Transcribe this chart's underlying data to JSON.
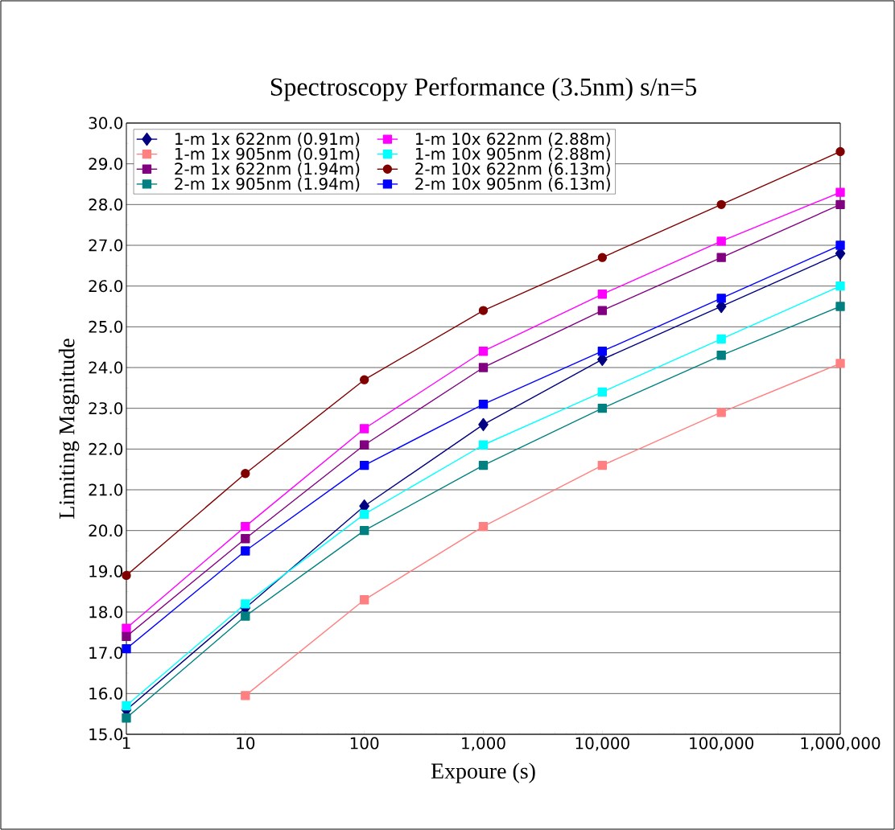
{
  "chart_data": {
    "type": "line",
    "title": "Spectroscopy Performance (3.5nm) s/n=5",
    "xlabel": "Expoure (s)",
    "ylabel": "Limiting Magnitude",
    "x": [
      1,
      10,
      100,
      1000,
      10000,
      100000,
      1000000
    ],
    "log": "x",
    "xlim": [
      1,
      1000000
    ],
    "ylim": [
      15,
      30
    ],
    "xticks": [
      1,
      10,
      100,
      {
        "value": 1000,
        "label": "1,000"
      },
      {
        "value": 10000,
        "label": "10,000"
      },
      {
        "value": 100000,
        "label": "100,000"
      },
      {
        "value": 1000000,
        "label": "1,000,000"
      }
    ],
    "yticks": [
      {
        "value": 15,
        "label": "15.0"
      },
      {
        "value": 16,
        "label": "16.0"
      },
      {
        "value": 17,
        "label": "17.0"
      },
      {
        "value": 18,
        "label": "18.0"
      },
      {
        "value": 19,
        "label": "19.0"
      },
      {
        "value": 20,
        "label": "20.0"
      },
      {
        "value": 21,
        "label": "21.0"
      },
      {
        "value": 22,
        "label": "22.0"
      },
      {
        "value": 23,
        "label": "23.0"
      },
      {
        "value": 24,
        "label": "24.0"
      },
      {
        "value": 25,
        "label": "25.0"
      },
      {
        "value": 26,
        "label": "26.0"
      },
      {
        "value": 27,
        "label": "27.0"
      },
      {
        "value": 28,
        "label": "28.0"
      },
      {
        "value": 29,
        "label": "29.0"
      },
      {
        "value": 30,
        "label": "30.0"
      }
    ],
    "grid": "y",
    "legend": "top left",
    "line_style": "solid",
    "series": [
      {
        "name": "1-m 1x 622nm (0.91m)",
        "color": "#000080",
        "marker": "diamond",
        "values": [
          15.6,
          18.1,
          20.6,
          22.6,
          24.2,
          25.5,
          26.8
        ]
      },
      {
        "name": "1-m 1x 905nm (0.91m)",
        "color": "#ff8080",
        "marker": "square",
        "values": [
          null,
          15.95,
          18.3,
          20.1,
          21.6,
          22.9,
          24.1
        ]
      },
      {
        "name": "2-m 1x 622nm (1.94m)",
        "color": "#800080",
        "marker": "square",
        "values": [
          17.4,
          19.8,
          22.1,
          24.0,
          25.4,
          26.7,
          28.0
        ]
      },
      {
        "name": "2-m 1x 905nm (1.94m)",
        "color": "#008080",
        "marker": "square",
        "values": [
          15.4,
          17.9,
          20.0,
          21.6,
          23.0,
          24.3,
          25.5
        ]
      },
      {
        "name": "1-m 10x 622nm (2.88m)",
        "color": "#ff00ff",
        "marker": "square",
        "values": [
          17.6,
          20.1,
          22.5,
          24.4,
          25.8,
          27.1,
          28.3
        ]
      },
      {
        "name": "1-m 10x 905nm (2.88m)",
        "color": "#00ffff",
        "marker": "square",
        "values": [
          15.7,
          18.2,
          20.4,
          22.1,
          23.4,
          24.7,
          26.0
        ]
      },
      {
        "name": "2-m 10x 622nm (6.13m)",
        "color": "#800000",
        "marker": "circle",
        "values": [
          18.9,
          21.4,
          23.7,
          25.4,
          26.7,
          28.0,
          29.3
        ]
      },
      {
        "name": "2-m 10x 905nm (6.13m)",
        "color": "#0000ff",
        "marker": "square",
        "values": [
          17.1,
          19.5,
          21.6,
          23.1,
          24.4,
          25.7,
          27.0
        ]
      }
    ]
  }
}
